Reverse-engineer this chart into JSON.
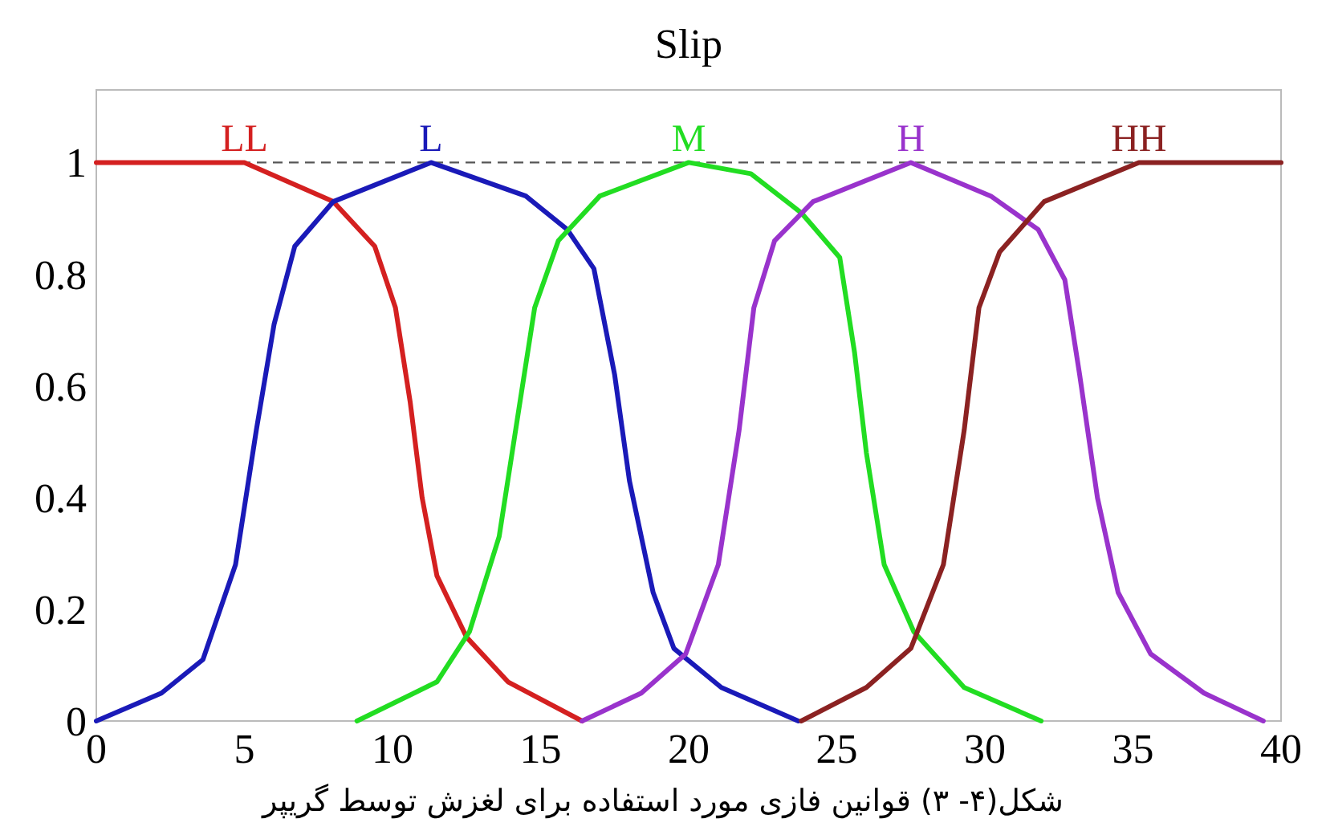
{
  "chart_data": {
    "type": "line",
    "title": "Slip",
    "xlim": [
      0,
      40
    ],
    "ylim": [
      0,
      1.13
    ],
    "xticks": [
      0,
      5,
      10,
      15,
      20,
      25,
      30,
      35,
      40
    ],
    "yticks": [
      0,
      0.2,
      0.4,
      0.6,
      0.8,
      1
    ],
    "grid": false,
    "ref_lines": [
      {
        "axis": "y",
        "value": 1,
        "color": "#555555",
        "line_style": "dashed"
      }
    ],
    "annotations": [
      "شکل(۴- ۳) قوانین فازی مورد استفاده برای لغزش توسط گریپر"
    ],
    "series": [
      {
        "name": "LL",
        "color": "#d42020",
        "x": [
          0,
          5.0,
          8.0,
          9.4,
          10.1,
          10.6,
          11.0,
          11.5,
          12.5,
          13.9,
          16.4
        ],
        "values": [
          1,
          1,
          0.93,
          0.85,
          0.74,
          0.57,
          0.4,
          0.26,
          0.15,
          0.07,
          0
        ]
      },
      {
        "name": "L",
        "color": "#1a1ab8",
        "x": [
          0,
          2.2,
          3.6,
          4.7,
          5.4,
          6.0,
          6.7,
          8.0,
          11.3,
          14.5,
          15.9,
          16.8,
          17.5,
          18.0,
          18.8,
          19.5,
          21.1,
          23.7
        ],
        "values": [
          0,
          0.05,
          0.11,
          0.28,
          0.52,
          0.71,
          0.85,
          0.93,
          1,
          0.94,
          0.88,
          0.81,
          0.62,
          0.43,
          0.23,
          0.13,
          0.06,
          0
        ]
      },
      {
        "name": "M",
        "color": "#22dd22",
        "x": [
          8.8,
          11.5,
          12.6,
          13.6,
          14.3,
          14.8,
          15.6,
          17.0,
          20.0,
          22.1,
          23.8,
          25.1,
          25.6,
          26.0,
          26.6,
          27.6,
          29.3,
          31.9
        ],
        "values": [
          0,
          0.07,
          0.16,
          0.33,
          0.57,
          0.74,
          0.86,
          0.94,
          1,
          0.98,
          0.91,
          0.83,
          0.66,
          0.48,
          0.28,
          0.16,
          0.06,
          0
        ]
      },
      {
        "name": "H",
        "color": "#9933cc",
        "x": [
          16.4,
          18.4,
          19.9,
          21.0,
          21.7,
          22.2,
          22.9,
          24.2,
          27.5,
          30.2,
          31.8,
          32.7,
          33.2,
          33.8,
          34.5,
          35.6,
          37.4,
          39.4
        ],
        "values": [
          0,
          0.05,
          0.12,
          0.28,
          0.52,
          0.74,
          0.86,
          0.93,
          1,
          0.94,
          0.88,
          0.79,
          0.62,
          0.4,
          0.23,
          0.12,
          0.05,
          0
        ]
      },
      {
        "name": "HH",
        "color": "#8b2222",
        "x": [
          23.8,
          26.0,
          27.5,
          28.6,
          29.3,
          29.8,
          30.5,
          32.0,
          35.2,
          40
        ],
        "values": [
          0,
          0.06,
          0.13,
          0.28,
          0.52,
          0.74,
          0.84,
          0.93,
          1,
          1
        ]
      }
    ]
  }
}
